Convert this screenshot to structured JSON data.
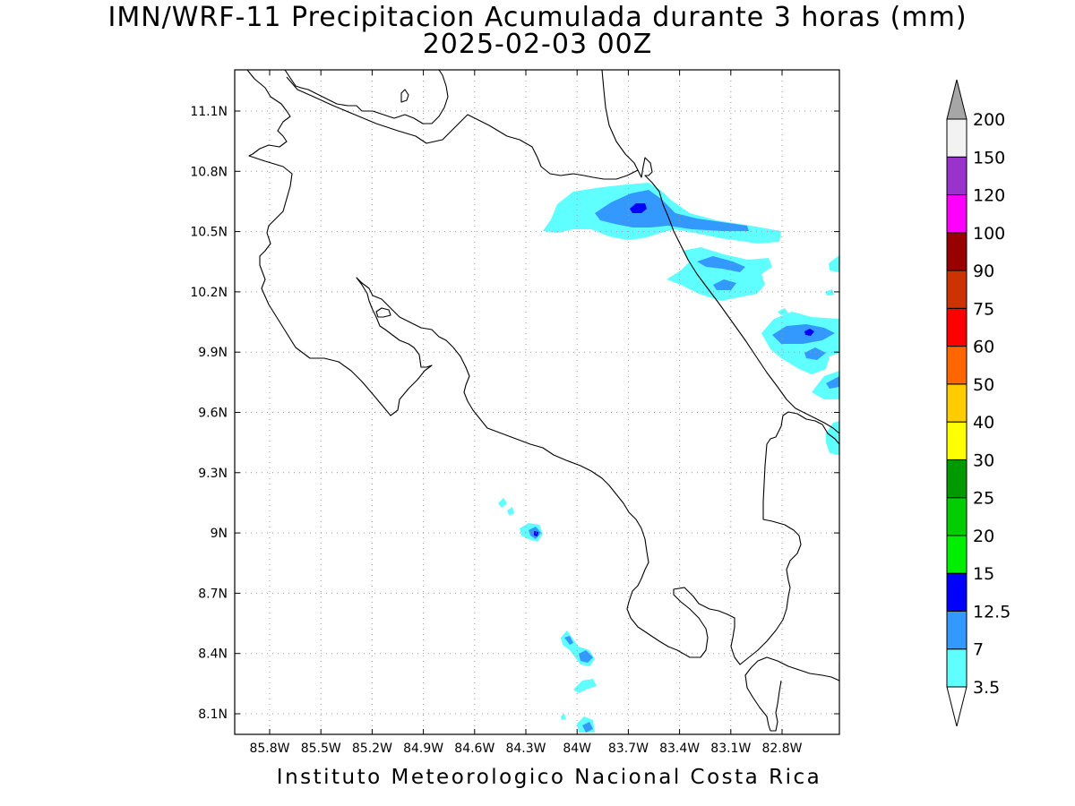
{
  "title": "IMN/WRF-11 Precipitacion Acumulada durante 3 horas (mm)",
  "subtitle": "2025-02-03 00Z",
  "credit": "Instituto Meteorologico Nacional Costa Rica",
  "map": {
    "lon_labels": [
      "85.8W",
      "85.5W",
      "85.2W",
      "84.9W",
      "84.6W",
      "84.3W",
      "84W",
      "83.7W",
      "83.4W",
      "83.1W",
      "82.8W"
    ],
    "lat_labels": [
      "11.1N",
      "10.8N",
      "10.5N",
      "10.2N",
      "9.9N",
      "9.6N",
      "9.3N",
      "9N",
      "8.7N",
      "8.4N",
      "8.1N"
    ],
    "grid": "dotted",
    "coastline_color": "#000000",
    "precipitation_regions": [
      {
        "label": "Caribbean coast near 10.6N 83.7W",
        "max_class": "12.5"
      },
      {
        "label": "Caribbean offshore near 10.3N 83.3W",
        "max_class": "7"
      },
      {
        "label": "Caribbean coast near 10.0N 82.6W",
        "max_class": "12.5"
      },
      {
        "label": "near 9.0N 84.25W",
        "max_class": "12.5"
      },
      {
        "label": "near 8.4N 84.0W",
        "max_class": "7"
      },
      {
        "label": "near 8.05N 83.95W",
        "max_class": "7"
      }
    ]
  },
  "colorbar": {
    "levels": [
      "3.5",
      "7",
      "12.5",
      "15",
      "20",
      "25",
      "30",
      "40",
      "50",
      "60",
      "75",
      "90",
      "100",
      "120",
      "150",
      "200"
    ],
    "colors": [
      "#60ffff",
      "#3399ff",
      "#0000ff",
      "#00ee00",
      "#00cc00",
      "#009900",
      "#ffff00",
      "#ffcc00",
      "#ff6600",
      "#ff0000",
      "#cc3300",
      "#990000",
      "#ff00ff",
      "#9933cc",
      "#f2f2f2"
    ],
    "over_color": "#a6a6a6",
    "under_color": "#ffffff"
  }
}
